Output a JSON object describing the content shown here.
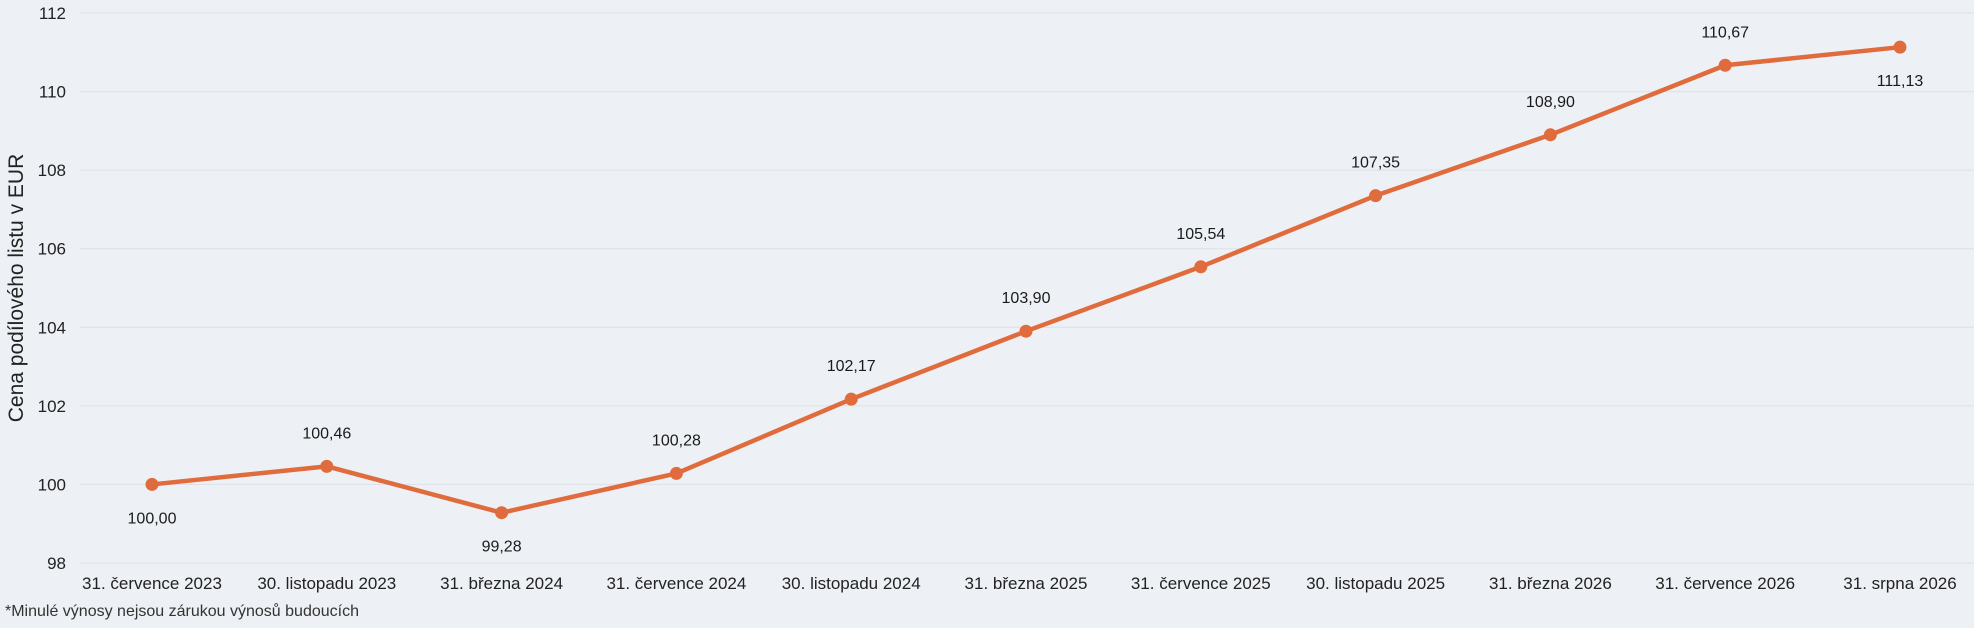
{
  "chart_data": {
    "type": "line",
    "ylabel": "Cena podílového listu v EUR",
    "ylim": [
      98,
      112
    ],
    "yticks": [
      98,
      100,
      102,
      104,
      106,
      108,
      110,
      112
    ],
    "grid": true,
    "categories": [
      "31. července 2023",
      "30. listopadu 2023",
      "31. března 2024",
      "31. července 2024",
      "30. listopadu 2024",
      "31. března 2025",
      "31. července 2025",
      "30. listopadu 2025",
      "31. března 2026",
      "31. července 2026",
      "31. srpna 2026"
    ],
    "series": [
      {
        "values": [
          100.0,
          100.46,
          99.28,
          100.28,
          102.17,
          103.9,
          105.54,
          107.35,
          108.9,
          110.67,
          111.13
        ],
        "labels": [
          "100,00",
          "100,46",
          "99,28",
          "100,28",
          "102,17",
          "103,90",
          "105,54",
          "107,35",
          "108,90",
          "110,67",
          "111,13"
        ],
        "label_positions": [
          "below",
          "above",
          "below",
          "above",
          "above",
          "above",
          "above",
          "above",
          "above",
          "above",
          "below"
        ],
        "color": "#e06b3c"
      }
    ],
    "ytick_labels": [
      "98",
      "100",
      "102",
      "104",
      "106",
      "108",
      "110",
      "112"
    ]
  },
  "footnote": "*Minulé výnosy nejsou zárukou výnosů budoucích",
  "colors": {
    "background": "#edf0f4",
    "line": "#e06b3c",
    "grid": "#dde1e6"
  }
}
